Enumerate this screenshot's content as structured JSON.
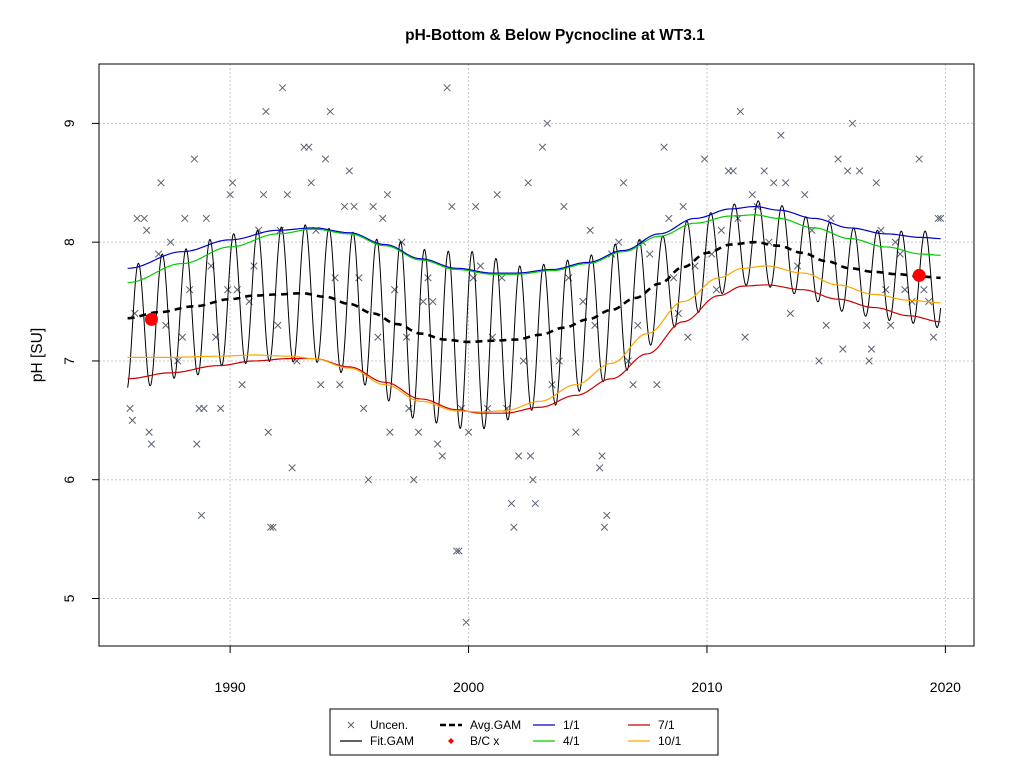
{
  "chart_data": {
    "type": "line",
    "title": "pH-Bottom & Below Pycnocline at WT3.1",
    "xlabel": "",
    "ylabel": "pH [SU]",
    "xlim": [
      1984.5,
      2021.2
    ],
    "ylim": [
      4.6,
      9.5
    ],
    "x_ticks": [
      1990,
      2000,
      2010,
      2020
    ],
    "y_ticks": [
      5,
      6,
      7,
      8,
      9
    ],
    "grid": true,
    "legend_position": "bottom-center",
    "colors": {
      "uncen": "#5a6272",
      "fit_gam": "#000000",
      "avg_gam": "#000000",
      "bc": "#ff0000",
      "s_1_1": "#0000cc",
      "s_4_1": "#00cc00",
      "s_7_1": "#cc0000",
      "s_10_1": "#ffa500"
    },
    "legend": [
      {
        "key": "uncen",
        "label": "Uncen."
      },
      {
        "key": "fit_gam",
        "label": "Fit.GAM"
      },
      {
        "key": "avg_gam",
        "label": "Avg.GAM"
      },
      {
        "key": "bc",
        "label": "B/C x"
      },
      {
        "key": "s_1_1",
        "label": "1/1"
      },
      {
        "key": "s_4_1",
        "label": "4/1"
      },
      {
        "key": "s_7_1",
        "label": "7/1"
      },
      {
        "key": "s_10_1",
        "label": "10/1"
      }
    ],
    "series": [
      {
        "key": "s_1_1",
        "x": [
          1985.7,
          1988,
          1990,
          1992,
          1993.5,
          1995,
          1996.5,
          1998,
          1999.5,
          2001,
          2002,
          2003.5,
          2005,
          2006.5,
          2008,
          2009.5,
          2011,
          2012,
          2013,
          2014.5,
          2016,
          2017.5,
          2019,
          2019.8
        ],
        "y": [
          7.78,
          7.92,
          8.02,
          8.1,
          8.12,
          8.08,
          7.98,
          7.86,
          7.78,
          7.74,
          7.74,
          7.77,
          7.83,
          7.93,
          8.07,
          8.2,
          8.28,
          8.3,
          8.27,
          8.2,
          8.12,
          8.07,
          8.04,
          8.03
        ]
      },
      {
        "key": "s_4_1",
        "x": [
          1985.7,
          1988,
          1990,
          1992,
          1993.5,
          1995,
          1996.5,
          1998,
          1999.5,
          2001,
          2002,
          2003.5,
          2005,
          2006.5,
          2008,
          2009.5,
          2011,
          2012,
          2013,
          2014.5,
          2016,
          2017.5,
          2019,
          2019.8
        ],
        "y": [
          7.66,
          7.82,
          7.96,
          8.07,
          8.11,
          8.07,
          7.97,
          7.85,
          7.77,
          7.73,
          7.73,
          7.76,
          7.82,
          7.92,
          8.05,
          8.16,
          8.22,
          8.23,
          8.2,
          8.12,
          8.03,
          7.96,
          7.9,
          7.89
        ]
      },
      {
        "key": "s_7_1",
        "x": [
          1985.7,
          1987.5,
          1989.5,
          1991,
          1992.5,
          1993.5,
          1995,
          1996.5,
          1998,
          1999.5,
          2000.5,
          2001.5,
          2003,
          2004.5,
          2006,
          2007.5,
          2009,
          2010.5,
          2011.5,
          2012.5,
          2014,
          2015.5,
          2017,
          2018.5,
          2019.8
        ],
        "y": [
          6.85,
          6.9,
          6.96,
          7.0,
          7.02,
          7.02,
          6.95,
          6.82,
          6.68,
          6.59,
          6.56,
          6.56,
          6.61,
          6.71,
          6.85,
          7.06,
          7.33,
          7.55,
          7.63,
          7.64,
          7.6,
          7.52,
          7.45,
          7.38,
          7.33
        ]
      },
      {
        "key": "s_10_1",
        "x": [
          1985.7,
          1987.5,
          1989.5,
          1991,
          1992.5,
          1993.5,
          1995,
          1996.5,
          1998,
          1999.5,
          2000.5,
          2001.5,
          2003,
          2004.5,
          2006,
          2007.5,
          2009,
          2010.5,
          2011.5,
          2012.5,
          2014,
          2015.5,
          2017,
          2018.5,
          2019.8
        ],
        "y": [
          7.03,
          7.03,
          7.04,
          7.05,
          7.04,
          7.02,
          6.94,
          6.8,
          6.66,
          6.58,
          6.57,
          6.58,
          6.66,
          6.8,
          6.98,
          7.23,
          7.5,
          7.7,
          7.78,
          7.8,
          7.74,
          7.64,
          7.56,
          7.51,
          7.49
        ]
      },
      {
        "key": "avg_gam",
        "x": [
          1985.7,
          1987,
          1988.5,
          1990,
          1991,
          1992,
          1993,
          1994,
          1995,
          1996,
          1997,
          1998,
          1999,
          2000,
          2001,
          2002,
          2003,
          2004,
          2005,
          2006,
          2007,
          2008,
          2009,
          2010,
          2011,
          2012,
          2013,
          2014,
          2015,
          2016,
          2017,
          2018,
          2019,
          2019.8
        ],
        "y": [
          7.36,
          7.41,
          7.46,
          7.52,
          7.55,
          7.56,
          7.57,
          7.54,
          7.48,
          7.4,
          7.31,
          7.23,
          7.18,
          7.16,
          7.17,
          7.18,
          7.22,
          7.28,
          7.35,
          7.43,
          7.53,
          7.65,
          7.79,
          7.91,
          7.98,
          8.0,
          7.97,
          7.91,
          7.84,
          7.78,
          7.75,
          7.73,
          7.71,
          7.7
        ]
      }
    ],
    "fit_gam": {
      "x_start": 1985.7,
      "x_end": 2019.8,
      "cycles_per_year": 1,
      "phase_peak": 0.15,
      "mean_knots_x": [
        1985.7,
        1988,
        1990,
        1992,
        1993.5,
        1995,
        1996.5,
        1998,
        1999.5,
        2001,
        2002,
        2003.5,
        2005,
        2006.5,
        2008,
        2009.5,
        2011,
        2012,
        2013,
        2014.5,
        2016,
        2017.5,
        2019,
        2019.8
      ],
      "mean_knots_y": [
        7.28,
        7.4,
        7.52,
        7.56,
        7.57,
        7.48,
        7.35,
        7.22,
        7.18,
        7.16,
        7.17,
        7.22,
        7.33,
        7.45,
        7.62,
        7.8,
        7.96,
        8.0,
        7.96,
        7.85,
        7.76,
        7.72,
        7.7,
        7.68
      ],
      "amp_knots_x": [
        1985.7,
        1990,
        1994,
        1998,
        2000,
        2003,
        2006,
        2009,
        2012,
        2015,
        2018,
        2019.8
      ],
      "amp_knots_y": [
        0.53,
        0.55,
        0.58,
        0.72,
        0.75,
        0.6,
        0.55,
        0.4,
        0.35,
        0.35,
        0.38,
        0.4
      ]
    },
    "bc_points": [
      {
        "x": 1986.7,
        "y": 7.35
      },
      {
        "x": 2018.9,
        "y": 7.72
      }
    ],
    "uncen_points": [
      [
        1985.8,
        6.6
      ],
      [
        1985.9,
        6.5
      ],
      [
        1986.0,
        7.4
      ],
      [
        1986.1,
        8.2
      ],
      [
        1986.4,
        8.2
      ],
      [
        1986.5,
        8.1
      ],
      [
        1986.6,
        6.4
      ],
      [
        1986.7,
        6.3
      ],
      [
        1987.0,
        7.9
      ],
      [
        1987.1,
        8.5
      ],
      [
        1987.3,
        7.3
      ],
      [
        1987.5,
        8.0
      ],
      [
        1987.8,
        7.0
      ],
      [
        1988.0,
        7.2
      ],
      [
        1988.1,
        8.2
      ],
      [
        1988.3,
        7.6
      ],
      [
        1988.5,
        8.7
      ],
      [
        1988.6,
        6.3
      ],
      [
        1988.7,
        6.6
      ],
      [
        1988.8,
        5.7
      ],
      [
        1988.9,
        6.6
      ],
      [
        1989.0,
        8.2
      ],
      [
        1989.2,
        7.8
      ],
      [
        1989.4,
        7.2
      ],
      [
        1989.6,
        6.6
      ],
      [
        1989.9,
        7.6
      ],
      [
        1990.0,
        8.4
      ],
      [
        1990.1,
        8.5
      ],
      [
        1990.3,
        7.6
      ],
      [
        1990.5,
        6.8
      ],
      [
        1990.8,
        7.5
      ],
      [
        1991.0,
        7.8
      ],
      [
        1991.2,
        8.1
      ],
      [
        1991.4,
        8.4
      ],
      [
        1991.5,
        9.1
      ],
      [
        1991.6,
        6.4
      ],
      [
        1991.7,
        5.6
      ],
      [
        1991.8,
        5.6
      ],
      [
        1992.0,
        7.3
      ],
      [
        1992.1,
        8.1
      ],
      [
        1992.2,
        9.3
      ],
      [
        1992.4,
        8.4
      ],
      [
        1992.6,
        6.1
      ],
      [
        1992.8,
        7.0
      ],
      [
        1993.1,
        8.8
      ],
      [
        1993.3,
        8.8
      ],
      [
        1993.4,
        8.5
      ],
      [
        1993.6,
        8.1
      ],
      [
        1993.8,
        6.8
      ],
      [
        1994.0,
        8.7
      ],
      [
        1994.2,
        9.1
      ],
      [
        1994.4,
        7.7
      ],
      [
        1994.6,
        6.8
      ],
      [
        1994.8,
        8.3
      ],
      [
        1995.0,
        8.6
      ],
      [
        1995.2,
        8.3
      ],
      [
        1995.4,
        7.7
      ],
      [
        1995.6,
        6.6
      ],
      [
        1995.8,
        6.0
      ],
      [
        1996.0,
        8.3
      ],
      [
        1996.2,
        7.2
      ],
      [
        1996.4,
        8.2
      ],
      [
        1996.6,
        8.4
      ],
      [
        1996.7,
        6.4
      ],
      [
        1996.9,
        7.6
      ],
      [
        1997.2,
        8.0
      ],
      [
        1997.4,
        7.2
      ],
      [
        1997.5,
        6.6
      ],
      [
        1997.7,
        6.0
      ],
      [
        1997.9,
        6.4
      ],
      [
        1998.1,
        7.5
      ],
      [
        1998.3,
        7.7
      ],
      [
        1998.5,
        7.5
      ],
      [
        1998.7,
        6.3
      ],
      [
        1998.9,
        6.2
      ],
      [
        1999.1,
        9.3
      ],
      [
        1999.3,
        8.3
      ],
      [
        1999.5,
        5.4
      ],
      [
        1999.6,
        5.4
      ],
      [
        1999.7,
        6.6
      ],
      [
        1999.9,
        4.8
      ],
      [
        2000.0,
        6.4
      ],
      [
        2000.2,
        7.7
      ],
      [
        2000.3,
        8.3
      ],
      [
        2000.5,
        7.8
      ],
      [
        2000.8,
        6.6
      ],
      [
        2001.0,
        7.2
      ],
      [
        2001.2,
        8.4
      ],
      [
        2001.4,
        7.7
      ],
      [
        2001.6,
        6.6
      ],
      [
        2001.8,
        5.8
      ],
      [
        2001.9,
        5.6
      ],
      [
        2002.1,
        6.2
      ],
      [
        2002.3,
        7.0
      ],
      [
        2002.5,
        8.5
      ],
      [
        2002.6,
        6.2
      ],
      [
        2002.7,
        6.0
      ],
      [
        2002.8,
        5.8
      ],
      [
        2003.1,
        8.8
      ],
      [
        2003.3,
        9.0
      ],
      [
        2003.5,
        6.8
      ],
      [
        2003.8,
        7.0
      ],
      [
        2004.0,
        8.3
      ],
      [
        2004.2,
        7.7
      ],
      [
        2004.5,
        6.4
      ],
      [
        2004.8,
        7.5
      ],
      [
        2005.1,
        8.1
      ],
      [
        2005.3,
        7.3
      ],
      [
        2005.5,
        6.1
      ],
      [
        2005.6,
        6.2
      ],
      [
        2005.7,
        5.6
      ],
      [
        2005.8,
        5.7
      ],
      [
        2006.0,
        7.9
      ],
      [
        2006.3,
        8.0
      ],
      [
        2006.5,
        8.5
      ],
      [
        2006.7,
        7.0
      ],
      [
        2006.9,
        6.8
      ],
      [
        2007.1,
        7.3
      ],
      [
        2007.3,
        8.0
      ],
      [
        2007.6,
        7.9
      ],
      [
        2007.9,
        6.8
      ],
      [
        2008.2,
        8.8
      ],
      [
        2008.4,
        8.2
      ],
      [
        2008.6,
        7.7
      ],
      [
        2008.8,
        7.4
      ],
      [
        2009.0,
        8.3
      ],
      [
        2009.2,
        7.2
      ],
      [
        2009.5,
        7.8
      ],
      [
        2009.9,
        8.7
      ],
      [
        2010.2,
        7.9
      ],
      [
        2010.4,
        7.6
      ],
      [
        2010.6,
        8.1
      ],
      [
        2010.9,
        8.6
      ],
      [
        2011.1,
        8.6
      ],
      [
        2011.3,
        8.2
      ],
      [
        2011.4,
        9.1
      ],
      [
        2011.6,
        7.2
      ],
      [
        2011.9,
        8.4
      ],
      [
        2012.1,
        8.3
      ],
      [
        2012.4,
        8.6
      ],
      [
        2012.6,
        8.0
      ],
      [
        2012.8,
        8.5
      ],
      [
        2013.1,
        8.9
      ],
      [
        2013.3,
        8.5
      ],
      [
        2013.5,
        7.4
      ],
      [
        2013.8,
        7.8
      ],
      [
        2014.1,
        8.4
      ],
      [
        2014.4,
        8.1
      ],
      [
        2014.7,
        7.0
      ],
      [
        2015.0,
        7.3
      ],
      [
        2015.2,
        8.2
      ],
      [
        2015.5,
        8.7
      ],
      [
        2015.7,
        7.1
      ],
      [
        2015.9,
        8.6
      ],
      [
        2016.1,
        9.0
      ],
      [
        2016.4,
        8.6
      ],
      [
        2016.7,
        7.3
      ],
      [
        2016.8,
        7.0
      ],
      [
        2016.9,
        7.1
      ],
      [
        2017.1,
        8.5
      ],
      [
        2017.3,
        8.1
      ],
      [
        2017.5,
        7.6
      ],
      [
        2017.7,
        7.3
      ],
      [
        2017.9,
        8.0
      ],
      [
        2018.1,
        7.9
      ],
      [
        2018.3,
        7.6
      ],
      [
        2018.6,
        7.5
      ],
      [
        2018.9,
        8.7
      ],
      [
        2019.1,
        7.6
      ],
      [
        2019.3,
        7.5
      ],
      [
        2019.5,
        7.2
      ],
      [
        2019.7,
        8.2
      ],
      [
        2019.8,
        8.2
      ]
    ]
  }
}
